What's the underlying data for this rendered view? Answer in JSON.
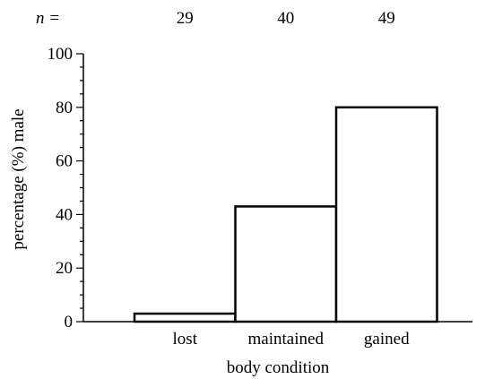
{
  "chart_data": {
    "type": "bar",
    "categories": [
      "lost",
      "maintained",
      "gained"
    ],
    "values": [
      3,
      43,
      80
    ],
    "sample_sizes": [
      "29",
      "40",
      "49"
    ],
    "sample_size_label": "n =",
    "xlabel": "body condition",
    "ylabel": "percentage (%) male",
    "ylim": [
      0,
      100
    ],
    "yticks": [
      "0",
      "20",
      "40",
      "60",
      "80",
      "100"
    ],
    "grid": false,
    "bar_fill": "#ffffff",
    "bar_stroke": "#000000"
  }
}
